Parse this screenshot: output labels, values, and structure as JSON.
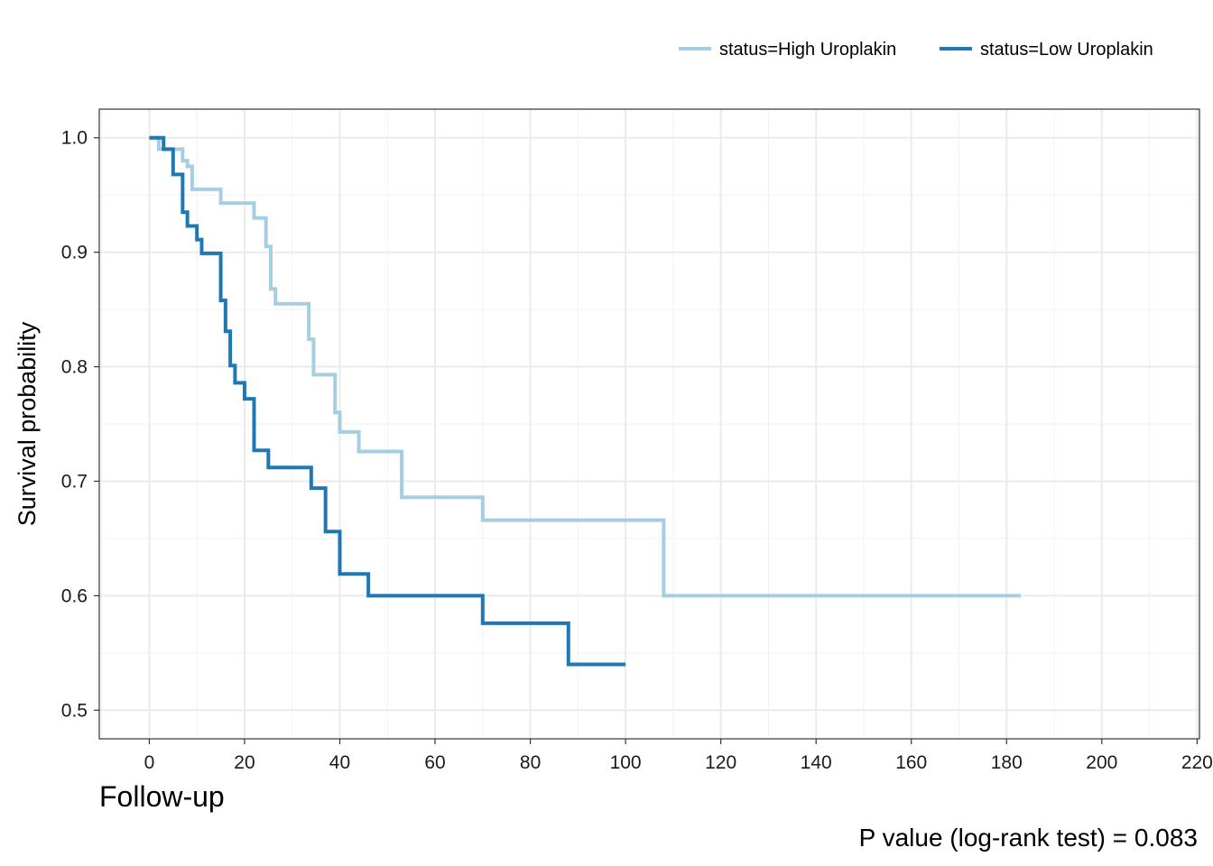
{
  "chart_data": {
    "type": "line",
    "ylabel": "Survival probability",
    "xlabel": "Follow-up",
    "annotation": "P value (log-rank test) = 0.083",
    "xlim": [
      -10.5,
      220.5
    ],
    "ylim": [
      0.475,
      1.025
    ],
    "x_ticks": [
      "0",
      "20",
      "40",
      "60",
      "80",
      "100",
      "120",
      "140",
      "160",
      "180",
      "200",
      "220"
    ],
    "y_ticks": [
      "0.5",
      "0.6",
      "0.7",
      "0.8",
      "0.9",
      "1.0"
    ],
    "grid": true,
    "legend_position": "top-right",
    "series": [
      {
        "name": "status=High Uroplakin",
        "color": "#a6cee3",
        "x": [
          0,
          2,
          7,
          8,
          9,
          15,
          22,
          24.5,
          25.5,
          26.5,
          33.5,
          34.5,
          39,
          40,
          44,
          53,
          70,
          108,
          183
        ],
        "y": [
          1.0,
          0.99,
          0.98,
          0.975,
          0.955,
          0.943,
          0.93,
          0.905,
          0.868,
          0.855,
          0.824,
          0.793,
          0.76,
          0.743,
          0.726,
          0.686,
          0.666,
          0.6,
          0.6
        ]
      },
      {
        "name": "status=Low Uroplakin",
        "color": "#1f78b4",
        "x": [
          0,
          3,
          5,
          7,
          8,
          10,
          11,
          15,
          16,
          17,
          18,
          20,
          22,
          25,
          26,
          34,
          37,
          40,
          46,
          70,
          88,
          100
        ],
        "y": [
          1.0,
          0.99,
          0.968,
          0.935,
          0.923,
          0.911,
          0.899,
          0.858,
          0.831,
          0.801,
          0.786,
          0.772,
          0.727,
          0.712,
          0.712,
          0.694,
          0.656,
          0.619,
          0.6,
          0.576,
          0.54,
          0.54
        ]
      }
    ]
  }
}
